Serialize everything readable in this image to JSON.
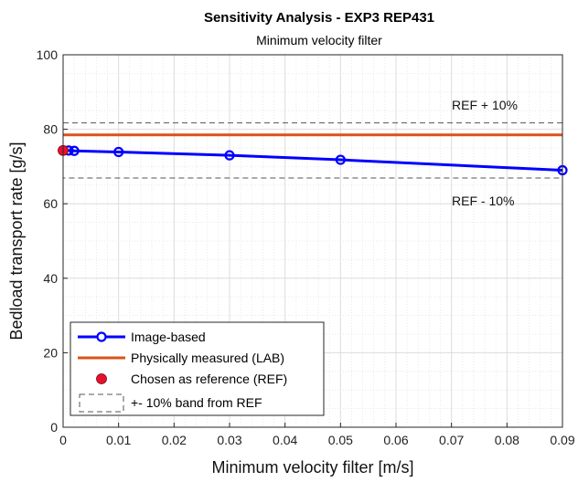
{
  "chart_data": {
    "type": "line",
    "title": "Sensitivity Analysis - EXP3 REP431",
    "subtitle": "Minimum velocity filter",
    "xlabel": "Minimum velocity filter [m/s]",
    "ylabel": "Bedload transport rate [g/s]",
    "xlim": [
      0,
      0.09
    ],
    "ylim": [
      0,
      100
    ],
    "x_ticks": [
      "0",
      "0.01",
      "0.02",
      "0.03",
      "0.04",
      "0.05",
      "0.06",
      "0.07",
      "0.08",
      "0.09"
    ],
    "y_ticks": [
      "0",
      "20",
      "40",
      "60",
      "80",
      "100"
    ],
    "grid": true,
    "minor_grid": true,
    "legend_position": "bottom-left",
    "series": [
      {
        "name": "Image-based",
        "color": "#0000ff",
        "marker": "open-circle",
        "x": [
          0,
          0.001,
          0.002,
          0.01,
          0.03,
          0.05,
          0.09
        ],
        "y": [
          74.3,
          74.3,
          74.2,
          73.9,
          73.0,
          71.8,
          69.0
        ]
      },
      {
        "name": "Physically measured (LAB)",
        "color": "#d95319",
        "x": [
          0,
          0.09
        ],
        "y": [
          78.5,
          78.5
        ]
      },
      {
        "name": "Chosen as reference (REF)",
        "color": "#e8112d",
        "marker": "filled-circle",
        "x": [
          0
        ],
        "y": [
          74.3
        ]
      },
      {
        "name": "+- 10% band from REF",
        "color": "#555555",
        "line": "dashed",
        "x": [
          0,
          0.09
        ],
        "upper": [
          81.7,
          81.7
        ],
        "lower": [
          66.9,
          66.9
        ]
      }
    ],
    "annotations": [
      {
        "text": "REF + 10%",
        "x": 0.0778,
        "y": 86.5
      },
      {
        "text": "REF - 10%",
        "x": 0.0778,
        "y": 60.8
      }
    ]
  }
}
